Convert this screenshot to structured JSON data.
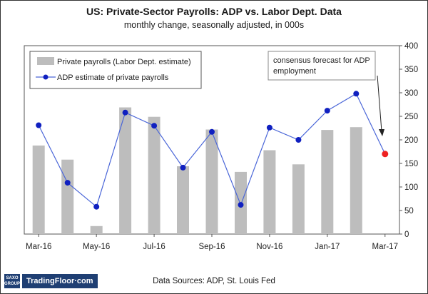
{
  "title": "US: Private-Sector Payrolls: ADP vs. Labor Dept. Data",
  "subtitle": "monthly change, seasonally adjusted, in 000s",
  "source": "Data Sources: ADP, St. Louis Fed",
  "logo": {
    "saxo_line1": "SAXO",
    "saxo_line2": "GROUP",
    "brand": "TradingFloor·com"
  },
  "colors": {
    "bar": "#bdbdbd",
    "line": "#4a66d8",
    "marker": "#1020c0",
    "forecast": "#ee2222"
  },
  "chart_data": {
    "type": "bar",
    "categories": [
      "Mar-16",
      "Apr-16",
      "May-16",
      "Jun-16",
      "Jul-16",
      "Aug-16",
      "Sep-16",
      "Oct-16",
      "Nov-16",
      "Dec-16",
      "Jan-17",
      "Feb-17",
      "Mar-17"
    ],
    "x_tick_labels": [
      "Mar-16",
      "May-16",
      "Jul-16",
      "Sep-16",
      "Nov-16",
      "Jan-17",
      "Mar-17"
    ],
    "series": [
      {
        "name": "Private payrolls (Labor Dept. estimate)",
        "type": "bar",
        "values": [
          188,
          158,
          17,
          269,
          249,
          144,
          222,
          132,
          178,
          148,
          221,
          227,
          null
        ]
      },
      {
        "name": "ADP estimate of private payrolls",
        "type": "line",
        "values": [
          231,
          109,
          58,
          258,
          230,
          141,
          217,
          62,
          226,
          200,
          262,
          298,
          null
        ]
      },
      {
        "name": "consensus forecast for ADP employment",
        "type": "point",
        "values": [
          null,
          null,
          null,
          null,
          null,
          null,
          null,
          null,
          null,
          null,
          null,
          null,
          170
        ]
      }
    ],
    "ylim": [
      0,
      400
    ],
    "y_ticks": [
      0,
      50,
      100,
      150,
      200,
      250,
      300,
      350,
      400
    ],
    "y_axis_side": "right",
    "grid": false,
    "legend_position": "top-left",
    "annotation": {
      "text_line1": "consensus forecast for ADP",
      "text_line2": "employment"
    }
  }
}
